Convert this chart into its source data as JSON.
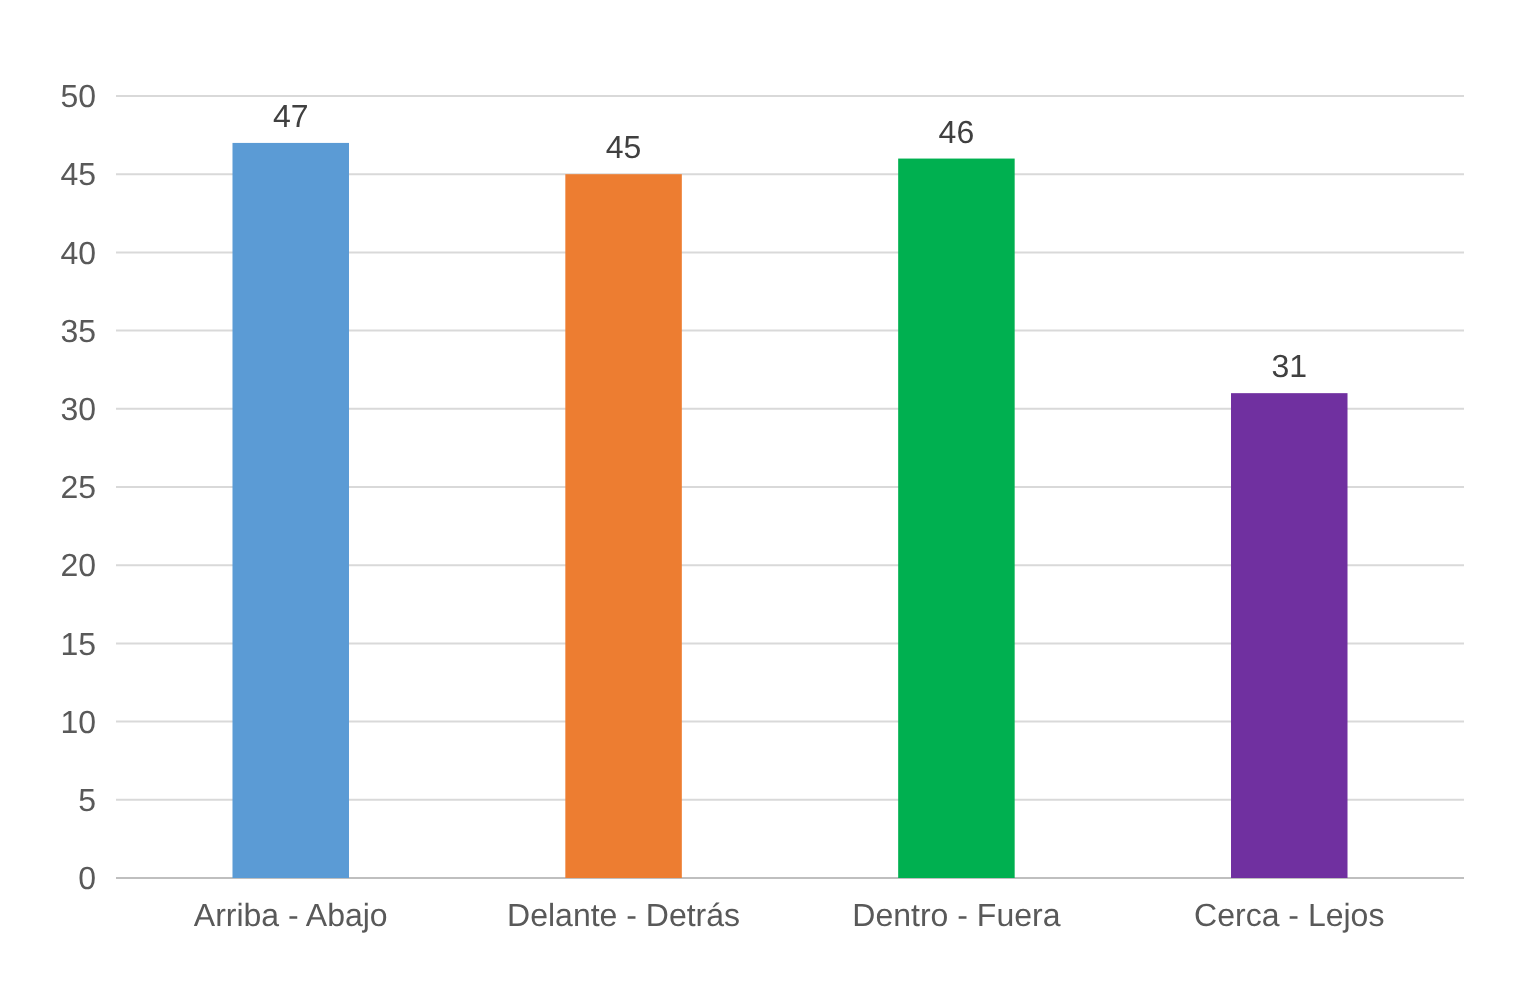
{
  "chart_data": {
    "type": "bar",
    "categories": [
      "Arriba - Abajo",
      "Delante - Detrás",
      "Dentro - Fuera",
      "Cerca - Lejos"
    ],
    "values": [
      47,
      45,
      46,
      31
    ],
    "colors": [
      "#5b9bd5",
      "#ed7d31",
      "#00b050",
      "#7030a0"
    ],
    "ylim": [
      0,
      50
    ],
    "yticks": [
      0,
      5,
      10,
      15,
      20,
      25,
      30,
      35,
      40,
      45,
      50
    ],
    "grid": "y",
    "data_labels": true
  }
}
